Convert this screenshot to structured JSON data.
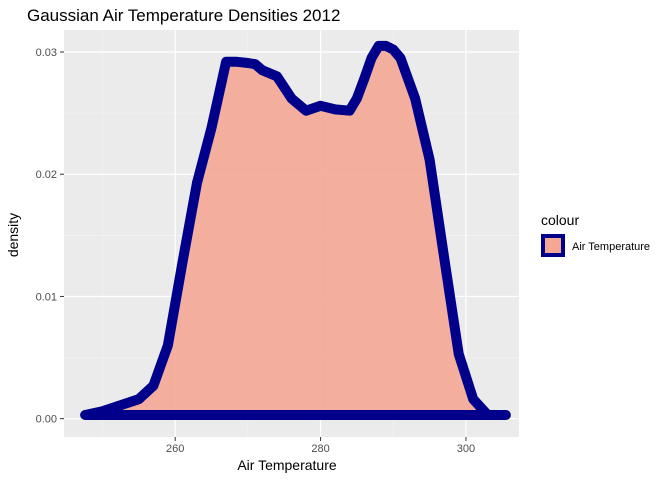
{
  "chart_data": {
    "type": "area",
    "title": "Gaussian Air Temperature Densities 2012",
    "xlabel": "Air Temperature",
    "ylabel": "density",
    "xlim": [
      244.7,
      307.3
    ],
    "ylim": [
      -0.0015,
      0.0318
    ],
    "x_ticks": [
      260,
      280,
      300
    ],
    "x_tick_labels": [
      "260",
      "280",
      "300"
    ],
    "y_ticks": [
      0.0,
      0.01,
      0.02,
      0.03
    ],
    "y_tick_labels": [
      "0.00",
      "0.01",
      "0.02",
      "0.03"
    ],
    "grid": true,
    "legend": {
      "title": "colour",
      "position": "right",
      "entries": [
        "Air Temperature"
      ]
    },
    "series": [
      {
        "name": "Air Temperature",
        "fill": "#f4a795",
        "stroke": "#00008b",
        "x": [
          247.6,
          250,
          252,
          255,
          257,
          259,
          261,
          263,
          265,
          267,
          268.5,
          270,
          271,
          272,
          274,
          276,
          278,
          280,
          282,
          284,
          285,
          286,
          287,
          288,
          289,
          290,
          291,
          293,
          295,
          297,
          299,
          301,
          303,
          305.5
        ],
        "y": [
          0.0003,
          0.0006,
          0.001,
          0.0016,
          0.0027,
          0.006,
          0.0128,
          0.0193,
          0.0238,
          0.0292,
          0.0292,
          0.0291,
          0.029,
          0.0285,
          0.028,
          0.0262,
          0.0252,
          0.0256,
          0.0253,
          0.0252,
          0.0262,
          0.0278,
          0.0295,
          0.0305,
          0.0305,
          0.0302,
          0.0295,
          0.0262,
          0.0212,
          0.0132,
          0.0053,
          0.0016,
          0.0003,
          0.0003
        ]
      }
    ]
  }
}
